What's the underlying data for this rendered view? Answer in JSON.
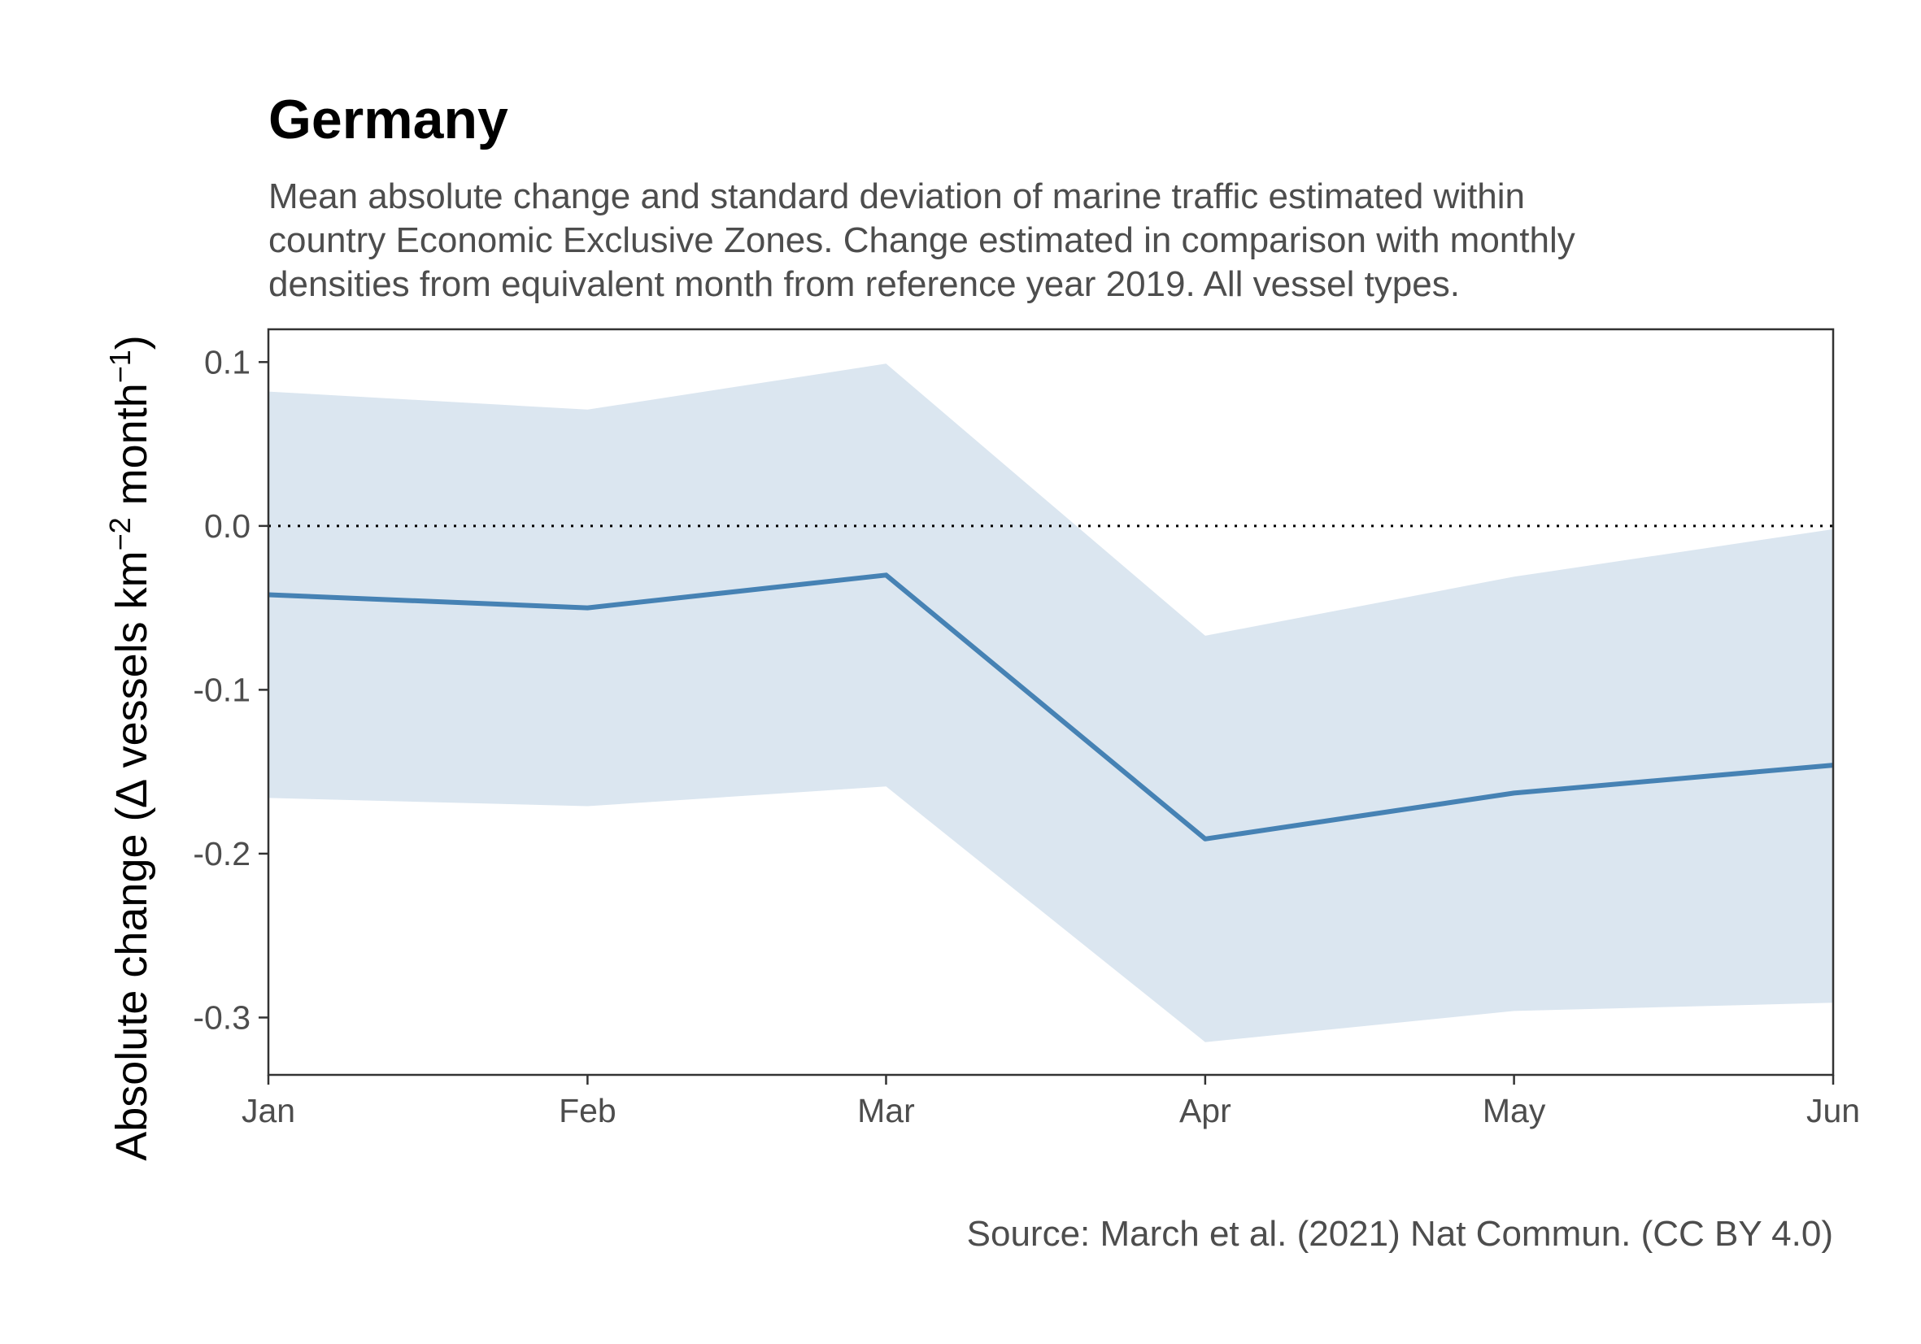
{
  "chart_data": {
    "type": "line",
    "title": "Germany",
    "subtitle_lines": [
      "Mean absolute change and standard deviation of marine traffic estimated within",
      "country Economic Exclusive Zones. Change estimated in comparison with monthly",
      "densities from equivalent month from reference year 2019. All vessel types."
    ],
    "ylabel": {
      "prefix": "Absolute change (",
      "delta": "∆",
      "vessels_km": " vessels km",
      "exp1": "−2",
      "month": " month",
      "exp2": "−1",
      "suffix": ")"
    },
    "xlabel": "",
    "caption": "Source: March et al. (2021) Nat Commun. (CC BY 4.0)",
    "categories": [
      "Jan",
      "Feb",
      "Mar",
      "Apr",
      "May",
      "Jun"
    ],
    "series": [
      {
        "values": [
          -0.042,
          -0.05,
          -0.03,
          -0.191,
          -0.163,
          -0.146
        ],
        "upper": [
          0.082,
          0.071,
          0.099,
          -0.067,
          -0.031,
          -0.002
        ],
        "lower": [
          -0.166,
          -0.171,
          -0.159,
          -0.315,
          -0.296,
          -0.291
        ]
      }
    ],
    "x_positions_days": [
      0,
      31,
      60,
      91,
      121,
      152
    ],
    "ylim": [
      -0.335,
      0.12
    ],
    "yticks": [
      0.1,
      0.0,
      -0.1,
      -0.2,
      -0.3
    ],
    "ytick_labels": [
      "0.1",
      "0.0",
      "-0.1",
      "-0.2",
      "-0.3"
    ],
    "reference_line": 0,
    "grid": false,
    "colors": {
      "line": "#4682b4",
      "band": "#dbe6f0",
      "axis": "#333333",
      "reference": "#000000"
    }
  }
}
